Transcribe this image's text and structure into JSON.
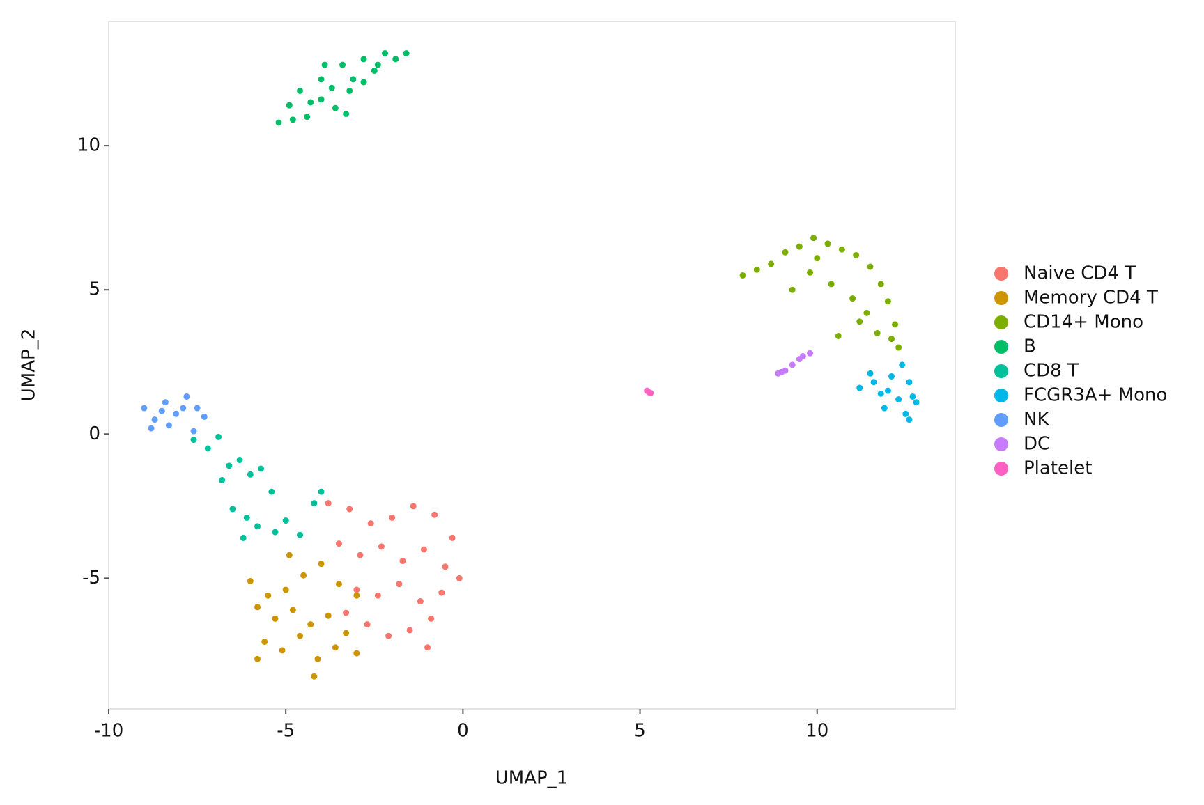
{
  "chart_data": {
    "type": "scatter",
    "xlabel": "UMAP_1",
    "ylabel": "UMAP_2",
    "xlim": [
      -10,
      13.9
    ],
    "ylim": [
      -9.53,
      14.3
    ],
    "xticks": [
      -10,
      -5,
      0,
      5,
      10
    ],
    "yticks": [
      -5,
      0,
      5,
      10
    ],
    "legend": "right",
    "series": [
      {
        "name": "Naive CD4 T",
        "color": "#F8766D",
        "x": [
          -3.8,
          -3.2,
          -2.6,
          -2.0,
          -1.4,
          -0.8,
          -0.3,
          -3.5,
          -2.9,
          -2.3,
          -1.7,
          -1.1,
          -0.5,
          -0.1,
          -3.0,
          -2.4,
          -1.8,
          -1.2,
          -0.6,
          -2.7,
          -2.1,
          -1.5,
          -0.9,
          -3.3,
          -1.0
        ],
        "y": [
          -2.4,
          -2.6,
          -3.1,
          -2.9,
          -2.5,
          -2.8,
          -3.6,
          -3.8,
          -4.2,
          -3.9,
          -4.4,
          -4.0,
          -4.6,
          -5.0,
          -5.4,
          -5.6,
          -5.2,
          -5.8,
          -5.5,
          -6.6,
          -7.0,
          -6.8,
          -6.4,
          -6.2,
          -7.4
        ]
      },
      {
        "name": "Memory CD4 T",
        "color": "#CD9600",
        "x": [
          -6.0,
          -5.5,
          -5.0,
          -4.5,
          -4.0,
          -3.5,
          -3.0,
          -5.8,
          -5.3,
          -4.8,
          -4.3,
          -3.8,
          -3.3,
          -5.6,
          -5.1,
          -4.6,
          -4.1,
          -3.6,
          -4.2,
          -5.8,
          -3.0,
          -4.9
        ],
        "y": [
          -5.1,
          -5.6,
          -5.4,
          -4.9,
          -4.5,
          -5.2,
          -5.6,
          -6.0,
          -6.4,
          -6.1,
          -6.6,
          -6.3,
          -6.9,
          -7.2,
          -7.5,
          -7.0,
          -7.8,
          -7.4,
          -8.4,
          -7.8,
          -7.6,
          -4.2
        ]
      },
      {
        "name": "CD14+ Mono",
        "color": "#7CAE00",
        "x": [
          7.9,
          8.3,
          8.7,
          9.1,
          9.5,
          9.9,
          10.3,
          10.7,
          11.1,
          11.5,
          11.8,
          12.0,
          12.2,
          12.3,
          9.3,
          9.8,
          10.4,
          11.0,
          11.4,
          11.7,
          10.0,
          10.6,
          11.2,
          12.1
        ],
        "y": [
          5.5,
          5.7,
          5.9,
          6.3,
          6.5,
          6.8,
          6.6,
          6.4,
          6.2,
          5.8,
          5.2,
          4.6,
          3.8,
          3.0,
          5.0,
          5.6,
          5.2,
          4.7,
          4.2,
          3.5,
          6.1,
          3.4,
          3.9,
          3.3
        ]
      },
      {
        "name": "B",
        "color": "#00BE67",
        "x": [
          -5.2,
          -4.9,
          -4.6,
          -4.3,
          -4.0,
          -3.7,
          -3.4,
          -3.1,
          -2.8,
          -2.5,
          -2.2,
          -1.9,
          -1.6,
          -4.8,
          -4.4,
          -4.0,
          -3.6,
          -3.2,
          -2.8,
          -2.4,
          -3.9,
          -3.3
        ],
        "y": [
          10.8,
          11.4,
          11.9,
          11.5,
          12.3,
          12.0,
          12.8,
          12.3,
          13.0,
          12.6,
          13.2,
          13.0,
          13.2,
          10.9,
          11.0,
          11.6,
          11.3,
          11.9,
          12.2,
          12.8,
          12.8,
          11.1
        ]
      },
      {
        "name": "CD8 T",
        "color": "#00C19A",
        "x": [
          -7.6,
          -7.2,
          -6.9,
          -6.6,
          -6.3,
          -6.0,
          -5.7,
          -5.4,
          -5.0,
          -4.6,
          -4.2,
          -6.5,
          -6.1,
          -5.8,
          -5.3,
          -6.8,
          -4.0,
          -6.2
        ],
        "y": [
          -0.2,
          -0.5,
          -0.1,
          -1.1,
          -0.9,
          -1.4,
          -1.2,
          -2.0,
          -3.0,
          -3.5,
          -2.4,
          -2.6,
          -2.9,
          -3.2,
          -3.4,
          -1.6,
          -2.0,
          -3.6
        ]
      },
      {
        "name": "FCGR3A+ Mono",
        "color": "#00B8E7",
        "x": [
          11.2,
          11.5,
          11.8,
          12.1,
          12.4,
          12.6,
          12.8,
          11.9,
          12.3,
          12.6,
          12.5,
          11.6,
          12.0,
          12.7
        ],
        "y": [
          1.6,
          2.1,
          1.4,
          2.0,
          2.4,
          1.8,
          1.1,
          0.9,
          1.2,
          0.5,
          0.7,
          1.8,
          1.5,
          1.3
        ]
      },
      {
        "name": "NK",
        "color": "#619CFF",
        "x": [
          -9.0,
          -8.7,
          -8.4,
          -8.1,
          -7.8,
          -7.5,
          -7.3,
          -8.8,
          -8.3,
          -7.9,
          -7.6,
          -8.5
        ],
        "y": [
          0.9,
          0.5,
          1.1,
          0.7,
          1.3,
          0.9,
          0.6,
          0.2,
          0.3,
          0.9,
          0.1,
          0.8
        ]
      },
      {
        "name": "DC",
        "color": "#C77CFF",
        "x": [
          8.9,
          9.1,
          9.3,
          9.5,
          9.6,
          9.8,
          9.0
        ],
        "y": [
          2.1,
          2.2,
          2.4,
          2.6,
          2.7,
          2.8,
          2.15
        ]
      },
      {
        "name": "Platelet",
        "color": "#FF61C3",
        "x": [
          5.2,
          5.25,
          5.3
        ],
        "y": [
          1.5,
          1.45,
          1.42
        ]
      }
    ]
  }
}
